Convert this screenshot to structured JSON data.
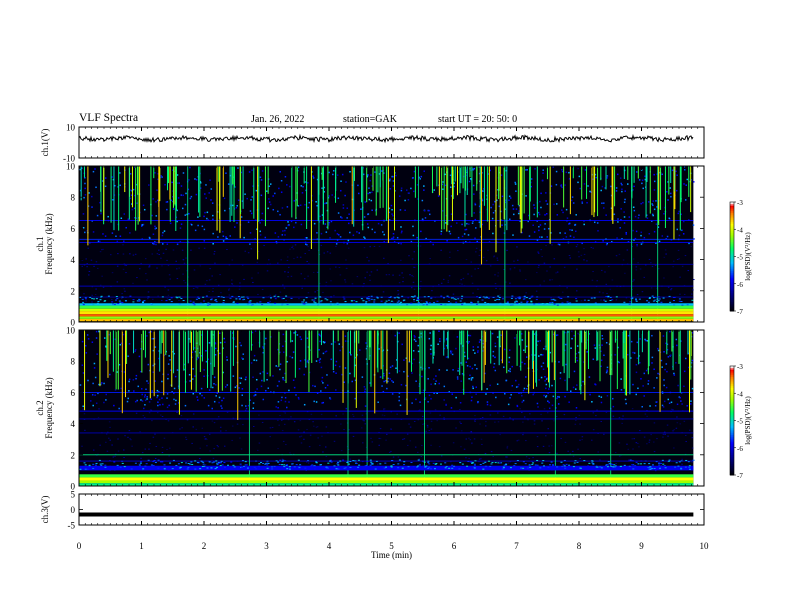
{
  "header": {
    "title": "VLF Spectra",
    "date": "Jan. 26, 2022",
    "station": "station=GAK",
    "start": "start UT =  20: 50: 0"
  },
  "chart_data": [
    {
      "type": "line",
      "name": "ch1-waveform",
      "ylabel": "ch.1(V)",
      "ylim": [
        -10,
        10
      ],
      "yticks": [
        "10",
        "-10"
      ],
      "baseline": 2.5,
      "trace_color": "#000000"
    },
    {
      "type": "heatmap",
      "name": "ch1-spectrogram",
      "ylabel": "ch.1\nFrequency (kHz)",
      "ylim": [
        0,
        10
      ],
      "yticks": [
        "10",
        "8",
        "6",
        "4",
        "2",
        "0"
      ],
      "colorbar": {
        "label": "log(PSD)(V²/Hz)",
        "range": [
          -7,
          -3
        ],
        "ticks": [
          "-3",
          "-4",
          "-5",
          "-6",
          "-7"
        ],
        "colormap": [
          "#000000",
          "#000060",
          "#0000ff",
          "#00c0ff",
          "#00ff60",
          "#a0ff00",
          "#ffff00",
          "#ff8000",
          "#ff0000",
          "#ffffff"
        ]
      }
    },
    {
      "type": "heatmap",
      "name": "ch2-spectrogram",
      "ylabel": "ch.2\nFrequency (kHz)",
      "ylim": [
        0,
        10
      ],
      "yticks": [
        "10",
        "8",
        "6",
        "4",
        "2",
        "0"
      ],
      "colorbar": {
        "label": "log(PSD)(V²/Hz)",
        "range": [
          -7,
          -3
        ],
        "ticks": [
          "-3",
          "-4",
          "-5",
          "-6",
          "-7"
        ]
      }
    },
    {
      "type": "line",
      "name": "ch3-waveform",
      "ylabel": "ch.3(V)",
      "ylim": [
        -5,
        5
      ],
      "yticks": [
        "5",
        "0",
        "-5"
      ],
      "constant_value": -1.6,
      "trace_color": "#000000"
    }
  ],
  "x_axis": {
    "label": "Time (min)",
    "range": [
      0,
      10
    ],
    "ticks": [
      "0",
      "1",
      "2",
      "3",
      "4",
      "5",
      "6",
      "7",
      "8",
      "9",
      "10"
    ],
    "data_end": 9.83
  }
}
